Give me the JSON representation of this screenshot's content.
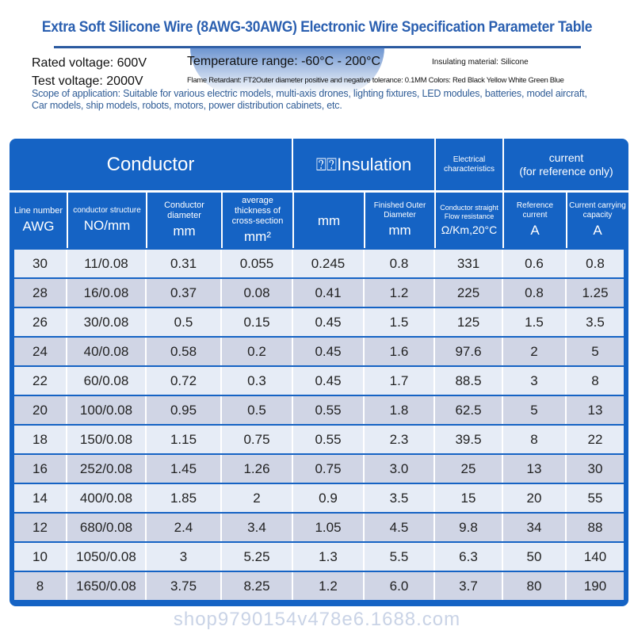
{
  "title": "Extra Soft Silicone Wire (8AWG-30AWG) Electronic Wire Specification Parameter Table",
  "specs": {
    "rated_voltage": "Rated voltage: 600V",
    "test_voltage": "Test voltage: 2000V",
    "temperature": "Temperature range: -60°C - 200°C",
    "insulating_material": "Insulating material: Silicone",
    "flame": "Flame Retardant: FT2Outer diameter positive and negative tolerance: 0.1MM Colors: Red Black Yellow White Green Blue",
    "scope_line1": "Scope of application: Suitable for various electric models, multi-axis drones, lighting fixtures, LED modules, batteries, model aircraft,",
    "scope_line2": "Car models, ship models, robots, motors, power distribution cabinets, etc."
  },
  "table": {
    "groups": {
      "conductor": "Conductor",
      "insulation": "⍰⍰Insulation",
      "electrical": "Electrical characteristics",
      "current": "current",
      "current_note": "(for reference only)"
    },
    "columns": [
      {
        "label": "Line number",
        "unit": "AWG"
      },
      {
        "label": "conductor structure",
        "unit": "NO/mm"
      },
      {
        "label": "Conductor diameter",
        "unit": "mm"
      },
      {
        "label": "average thickness of cross-section",
        "unit": "mm²"
      },
      {
        "label": "",
        "unit": "mm"
      },
      {
        "label": "Finished Outer Diameter",
        "unit": "mm"
      },
      {
        "label": "Conductor straight Flow resistance",
        "unit": "Ω/Km,20°C"
      },
      {
        "label": "Reference current",
        "unit": "A"
      },
      {
        "label": "Current carrying capacity",
        "unit": "A"
      }
    ],
    "rows": [
      [
        "30",
        "11/0.08",
        "0.31",
        "0.055",
        "0.245",
        "0.8",
        "331",
        "0.6",
        "0.8"
      ],
      [
        "28",
        "16/0.08",
        "0.37",
        "0.08",
        "0.41",
        "1.2",
        "225",
        "0.8",
        "1.25"
      ],
      [
        "26",
        "30/0.08",
        "0.5",
        "0.15",
        "0.45",
        "1.5",
        "125",
        "1.5",
        "3.5"
      ],
      [
        "24",
        "40/0.08",
        "0.58",
        "0.2",
        "0.45",
        "1.6",
        "97.6",
        "2",
        "5"
      ],
      [
        "22",
        "60/0.08",
        "0.72",
        "0.3",
        "0.45",
        "1.7",
        "88.5",
        "3",
        "8"
      ],
      [
        "20",
        "100/0.08",
        "0.95",
        "0.5",
        "0.55",
        "1.8",
        "62.5",
        "5",
        "13"
      ],
      [
        "18",
        "150/0.08",
        "1.15",
        "0.75",
        "0.55",
        "2.3",
        "39.5",
        "8",
        "22"
      ],
      [
        "16",
        "252/0.08",
        "1.45",
        "1.26",
        "0.75",
        "3.0",
        "25",
        "13",
        "30"
      ],
      [
        "14",
        "400/0.08",
        "1.85",
        "2",
        "0.9",
        "3.5",
        "15",
        "20",
        "55"
      ],
      [
        "12",
        "680/0.08",
        "2.4",
        "3.4",
        "1.05",
        "4.5",
        "9.8",
        "34",
        "88"
      ],
      [
        "10",
        "1050/0.08",
        "3",
        "5.25",
        "1.3",
        "5.5",
        "6.3",
        "50",
        "140"
      ],
      [
        "8",
        "1650/0.08",
        "3.75",
        "8.25",
        "1.2",
        "6.0",
        "3.7",
        "80",
        "190"
      ]
    ],
    "row_colors": [
      "#e6ecf6",
      "#d0d5e5"
    ]
  },
  "watermark": "shop9790154v478e6.1688.com"
}
